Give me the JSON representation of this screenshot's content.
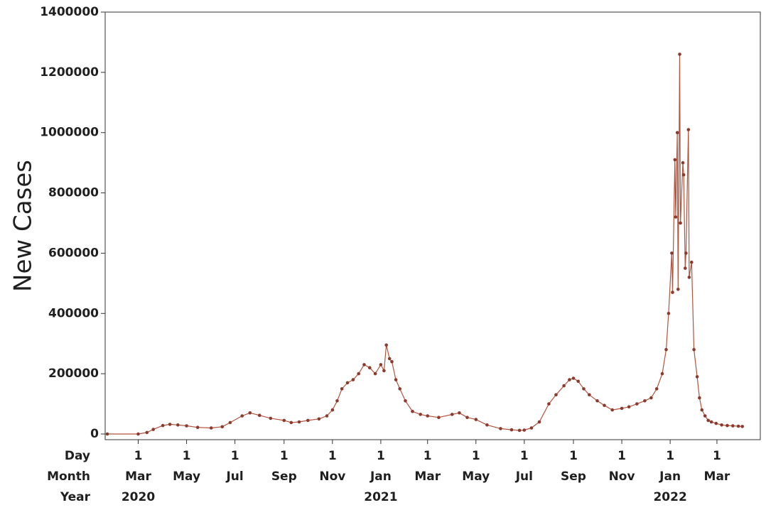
{
  "chart_data": {
    "type": "line",
    "title": "",
    "ylabel": "New Cases",
    "ylim": [
      0,
      1400000
    ],
    "yticks": [
      0,
      200000,
      400000,
      600000,
      800000,
      1000000,
      1200000,
      1400000
    ],
    "ytick_labels": [
      "0",
      "200000",
      "400000",
      "600000",
      "800000",
      "1000000",
      "1200000",
      "1400000"
    ],
    "xlim": [
      "2020-01-22",
      "2022-04-05"
    ],
    "x_axis_rows": {
      "day_label": "Day",
      "month_label": "Month",
      "year_label": "Year"
    },
    "x_ticks": [
      {
        "date": "2020-03-01",
        "day": "1",
        "month": "Mar"
      },
      {
        "date": "2020-05-01",
        "day": "1",
        "month": "May"
      },
      {
        "date": "2020-07-01",
        "day": "1",
        "month": "Jul"
      },
      {
        "date": "2020-09-01",
        "day": "1",
        "month": "Sep"
      },
      {
        "date": "2020-11-01",
        "day": "1",
        "month": "Nov"
      },
      {
        "date": "2021-01-01",
        "day": "1",
        "month": "Jan"
      },
      {
        "date": "2021-03-01",
        "day": "1",
        "month": "Mar"
      },
      {
        "date": "2021-05-01",
        "day": "1",
        "month": "May"
      },
      {
        "date": "2021-07-01",
        "day": "1",
        "month": "Jul"
      },
      {
        "date": "2021-09-01",
        "day": "1",
        "month": "Sep"
      },
      {
        "date": "2021-11-01",
        "day": "1",
        "month": "Nov"
      },
      {
        "date": "2022-01-01",
        "day": "1",
        "month": "Jan"
      },
      {
        "date": "2022-03-01",
        "day": "1",
        "month": "Mar"
      }
    ],
    "year_labels": [
      {
        "date": "2020-03-01",
        "label": "2020"
      },
      {
        "date": "2021-01-01",
        "label": "2021"
      },
      {
        "date": "2022-01-01",
        "label": "2022"
      }
    ],
    "series": [
      {
        "color": "#8b3a2e",
        "marker": "circle",
        "x": [
          "2020-01-22",
          "2020-03-01",
          "2020-03-12",
          "2020-03-20",
          "2020-04-01",
          "2020-04-10",
          "2020-04-20",
          "2020-05-01",
          "2020-05-15",
          "2020-06-01",
          "2020-06-15",
          "2020-06-25",
          "2020-07-10",
          "2020-07-20",
          "2020-08-01",
          "2020-08-15",
          "2020-09-01",
          "2020-09-10",
          "2020-09-20",
          "2020-10-01",
          "2020-10-15",
          "2020-10-25",
          "2020-11-01",
          "2020-11-07",
          "2020-11-13",
          "2020-11-20",
          "2020-11-27",
          "2020-12-04",
          "2020-12-11",
          "2020-12-18",
          "2020-12-25",
          "2021-01-01",
          "2021-01-05",
          "2021-01-08",
          "2021-01-12",
          "2021-01-15",
          "2021-01-20",
          "2021-01-25",
          "2021-02-01",
          "2021-02-10",
          "2021-02-20",
          "2021-03-01",
          "2021-03-15",
          "2021-04-01",
          "2021-04-10",
          "2021-04-20",
          "2021-05-01",
          "2021-05-15",
          "2021-06-01",
          "2021-06-15",
          "2021-06-25",
          "2021-07-01",
          "2021-07-10",
          "2021-07-20",
          "2021-08-01",
          "2021-08-10",
          "2021-08-20",
          "2021-08-27",
          "2021-09-01",
          "2021-09-07",
          "2021-09-14",
          "2021-09-21",
          "2021-10-01",
          "2021-10-10",
          "2021-10-20",
          "2021-11-01",
          "2021-11-10",
          "2021-11-20",
          "2021-11-30",
          "2021-12-08",
          "2021-12-15",
          "2021-12-22",
          "2021-12-27",
          "2021-12-30",
          "2022-01-03",
          "2022-01-04",
          "2022-01-07",
          "2022-01-08",
          "2022-01-10",
          "2022-01-11",
          "2022-01-13",
          "2022-01-14",
          "2022-01-17",
          "2022-01-18",
          "2022-01-20",
          "2022-01-21",
          "2022-01-24",
          "2022-01-25",
          "2022-01-28",
          "2022-01-31",
          "2022-02-04",
          "2022-02-07",
          "2022-02-10",
          "2022-02-14",
          "2022-02-18",
          "2022-02-22",
          "2022-02-28",
          "2022-03-07",
          "2022-03-14",
          "2022-03-21",
          "2022-03-28",
          "2022-04-02"
        ],
        "y": [
          0,
          0,
          5000,
          15000,
          28000,
          32000,
          30000,
          27000,
          22000,
          20000,
          24000,
          38000,
          60000,
          70000,
          62000,
          52000,
          45000,
          38000,
          40000,
          45000,
          50000,
          60000,
          80000,
          110000,
          150000,
          170000,
          180000,
          200000,
          230000,
          220000,
          200000,
          230000,
          210000,
          295000,
          250000,
          240000,
          180000,
          150000,
          110000,
          75000,
          65000,
          60000,
          55000,
          65000,
          70000,
          55000,
          48000,
          30000,
          18000,
          14000,
          12000,
          13000,
          20000,
          40000,
          100000,
          130000,
          160000,
          180000,
          185000,
          175000,
          150000,
          130000,
          110000,
          95000,
          80000,
          85000,
          90000,
          100000,
          110000,
          120000,
          150000,
          200000,
          280000,
          400000,
          600000,
          470000,
          910000,
          720000,
          1000000,
          480000,
          1260000,
          700000,
          900000,
          860000,
          550000,
          600000,
          1010000,
          520000,
          570000,
          280000,
          190000,
          120000,
          80000,
          60000,
          45000,
          40000,
          35000,
          30000,
          28000,
          27000,
          26000,
          25000
        ]
      }
    ]
  }
}
